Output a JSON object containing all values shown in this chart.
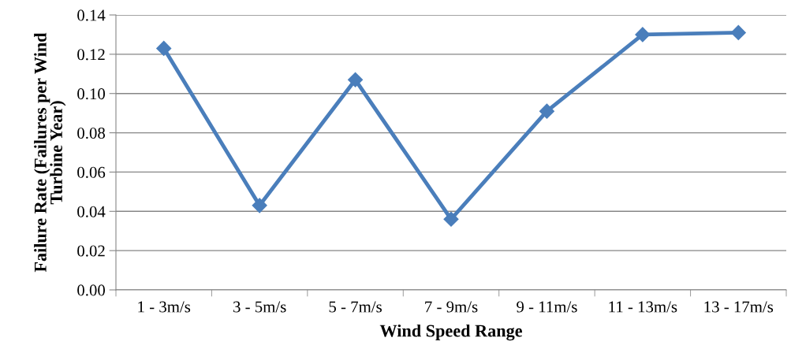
{
  "chart_data": {
    "type": "line",
    "xlabel": "Wind Speed Range",
    "ylabel": "Failure Rate (Failures per Wind\nTurbine Year)",
    "categories": [
      "1 - 3m/s",
      "3 - 5m/s",
      "5 - 7m/s",
      "7 - 9m/s",
      "9 - 11m/s",
      "11 - 13m/s",
      "13 - 17m/s"
    ],
    "series": [
      {
        "color": "#4a7ebb",
        "values": [
          0.123,
          0.043,
          0.107,
          0.036,
          0.091,
          0.13,
          0.131
        ]
      }
    ],
    "ylim": [
      0,
      0.14
    ],
    "yticks": [
      {
        "value": 0,
        "label": "0.00"
      },
      {
        "value": 0.02,
        "label": "0.02"
      },
      {
        "value": 0.04,
        "label": "0.04"
      },
      {
        "value": 0.06,
        "label": "0.06"
      },
      {
        "value": 0.08,
        "label": "0.08"
      },
      {
        "value": 0.1,
        "label": "0.10"
      },
      {
        "value": 0.12,
        "label": "0.12"
      },
      {
        "value": 0.14,
        "label": "0.14"
      }
    ],
    "grid": "y",
    "marker": "diamond",
    "line_style": "solid"
  }
}
